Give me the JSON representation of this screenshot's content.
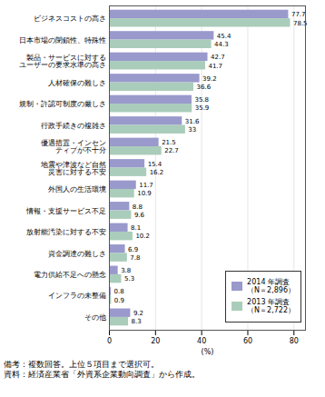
{
  "chart_data": {
    "type": "bar",
    "orientation": "horizontal",
    "categories": [
      "ビジネスコストの高さ",
      "日本市場の閉鎖性、特殊性",
      "製品・サービスに対する\nユーザーの要求水準の高さ",
      "人材確保の難しさ",
      "規制・許認可制度の厳しさ",
      "行政手続きの複雑さ",
      "優遇措置・インセン\nティブが不十分",
      "地震や津波など自然\n災害に対する不安",
      "外国人の生活環境",
      "情報・支援サービス不足",
      "放射能汚染に対する不安",
      "資金調達の難しさ",
      "電力供給不足への懸念",
      "インフラの未整備",
      "その他"
    ],
    "series": [
      {
        "name": "2014 年調査\n（N＝2,896）",
        "color": "#9999cc",
        "values": [
          77.7,
          45.4,
          42.7,
          39.2,
          35.8,
          31.6,
          21.5,
          15.4,
          11.7,
          8.8,
          8.1,
          6.9,
          3.8,
          0.8,
          9.2
        ]
      },
      {
        "name": "2013 年調査\n（N＝2,722）",
        "color": "#aaccbb",
        "values": [
          78.5,
          44.3,
          41.7,
          36.6,
          35.9,
          33.0,
          22.7,
          16.2,
          10.9,
          9.6,
          10.2,
          7.8,
          5.3,
          0.9,
          8.3
        ]
      }
    ],
    "xlim": [
      0,
      85
    ],
    "xticks": [
      0,
      20,
      40,
      60,
      80
    ],
    "xlabel": "(%)",
    "grid": true,
    "legend": "lower right",
    "data_labels": true,
    "annotations": [
      "備考：複数回答。上位５項目まで選択可。",
      "資料：経済産業省「外資系企業動向調査」から作成。"
    ]
  }
}
